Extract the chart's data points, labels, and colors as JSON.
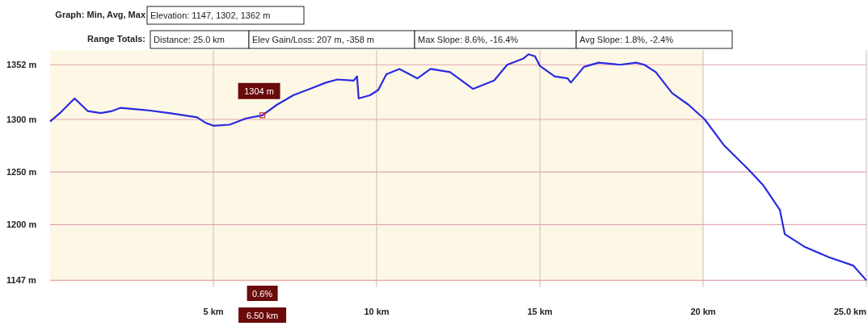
{
  "chart_data": {
    "type": "line",
    "title": "Graph: Min, Avg, Max",
    "subtitle": "Range Totals:",
    "annotations": [
      "Elevation: 1147, 1302, 1362 m",
      "Distance: 25.0 km",
      "Elev Gain/Loss: 207 m, -358 m",
      "Max Slope: 8.6%, -16.4%",
      "Avg Slope: 1.8%, -2.4%",
      {
        "text": "1304 m",
        "x": 6.5,
        "y": 1304
      },
      "0.6%",
      "6.50 km"
    ],
    "xlim": [
      0,
      25
    ],
    "ylim": [
      1145,
      1366
    ],
    "xticks": [
      {
        "value": 5,
        "label": "5 km"
      },
      {
        "value": 10,
        "label": "10 km"
      },
      {
        "value": 15,
        "label": "15 km"
      },
      {
        "value": 20,
        "label": "20 km"
      },
      {
        "value": 25,
        "label": "25.0 km"
      }
    ],
    "yticks": [
      {
        "value": 1147,
        "label": "1147 m"
      },
      {
        "value": 1200,
        "label": "1200 m"
      },
      {
        "value": 1250,
        "label": "1250 m"
      },
      {
        "value": 1300,
        "label": "1300 m"
      },
      {
        "value": 1352,
        "label": "1352 m"
      }
    ],
    "grid": true,
    "bands": [
      {
        "axis": "x",
        "from": 0,
        "to": 20,
        "color": "#fdf7e6"
      }
    ],
    "series": [
      {
        "color": "#2a2ae0",
        "x": [
          0,
          0.3,
          0.75,
          1.15,
          1.55,
          1.9,
          2.15,
          2.9,
          3.65,
          4.5,
          4.75,
          5,
          5.5,
          6,
          6.5,
          6.95,
          7.45,
          7.95,
          8.45,
          8.8,
          9.3,
          9.4,
          9.45,
          9.8,
          10.05,
          10.3,
          10.7,
          11.25,
          11.65,
          12.25,
          12.95,
          13.6,
          14,
          14.5,
          14.65,
          14.85,
          15,
          15.45,
          15.85,
          15.95,
          16.35,
          16.8,
          17.45,
          17.95,
          18.2,
          18.55,
          19.05,
          19.55,
          20.05,
          20.65,
          21.4,
          21.85,
          22.35,
          22.5,
          23.1,
          23.85,
          24.6,
          25
        ],
        "values": [
          1298,
          1306,
          1320,
          1308,
          1306,
          1308,
          1311,
          1309,
          1306,
          1302,
          1297,
          1294,
          1295,
          1301,
          1304,
          1314,
          1323,
          1329,
          1335,
          1338,
          1337,
          1341,
          1320,
          1323,
          1328,
          1343,
          1348,
          1339,
          1348,
          1345,
          1329,
          1337,
          1352,
          1358,
          1362,
          1360,
          1351,
          1341,
          1339,
          1335,
          1350,
          1354,
          1352,
          1354,
          1352,
          1345,
          1325,
          1314,
          1300,
          1275,
          1252,
          1237,
          1214,
          1191,
          1179,
          1169,
          1161,
          1147
        ]
      }
    ]
  }
}
